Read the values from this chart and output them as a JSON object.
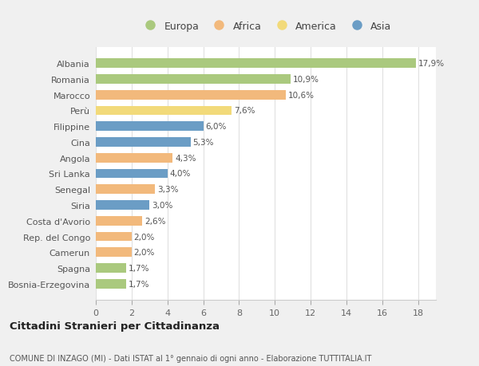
{
  "countries": [
    "Albania",
    "Romania",
    "Marocco",
    "Perù",
    "Filippine",
    "Cina",
    "Angola",
    "Sri Lanka",
    "Senegal",
    "Siria",
    "Costa d'Avorio",
    "Rep. del Congo",
    "Camerun",
    "Spagna",
    "Bosnia-Erzegovina"
  ],
  "values": [
    17.9,
    10.9,
    10.6,
    7.6,
    6.0,
    5.3,
    4.3,
    4.0,
    3.3,
    3.0,
    2.6,
    2.0,
    2.0,
    1.7,
    1.7
  ],
  "labels": [
    "17,9%",
    "10,9%",
    "10,6%",
    "7,6%",
    "6,0%",
    "5,3%",
    "4,3%",
    "4,0%",
    "3,3%",
    "3,0%",
    "2,6%",
    "2,0%",
    "2,0%",
    "1,7%",
    "1,7%"
  ],
  "continents": [
    "Europa",
    "Europa",
    "Africa",
    "America",
    "Asia",
    "Asia",
    "Africa",
    "Asia",
    "Africa",
    "Asia",
    "Africa",
    "Africa",
    "Africa",
    "Europa",
    "Europa"
  ],
  "colors": {
    "Europa": "#aac97e",
    "Africa": "#f2b97c",
    "America": "#f2da7a",
    "Asia": "#6b9dc5"
  },
  "legend_order": [
    "Europa",
    "Africa",
    "America",
    "Asia"
  ],
  "xlim": [
    0,
    19
  ],
  "xticks": [
    0,
    2,
    4,
    6,
    8,
    10,
    12,
    14,
    16,
    18
  ],
  "title": "Cittadini Stranieri per Cittadinanza",
  "subtitle": "COMUNE DI INZAGO (MI) - Dati ISTAT al 1° gennaio di ogni anno - Elaborazione TUTTITALIA.IT",
  "bg_color": "#f0f0f0",
  "plot_bg_color": "#ffffff"
}
